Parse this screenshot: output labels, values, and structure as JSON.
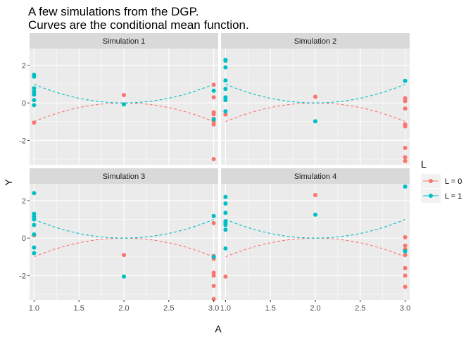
{
  "chart_data": {
    "type": "scatter",
    "title": "A few simulations from the DGP.",
    "subtitle": "Curves are the conditional mean function.",
    "xlabel": "A",
    "ylabel": "Y",
    "xlim": [
      0.95,
      3.05
    ],
    "ylim": [
      -3.3,
      2.9
    ],
    "x_ticks": [
      1.0,
      1.5,
      2.0,
      2.5,
      3.0
    ],
    "x_tick_labels": [
      "1.0",
      "1.5",
      "2.0",
      "2.5",
      "3.0"
    ],
    "y_ticks": [
      -2,
      0,
      2
    ],
    "y_tick_labels": [
      "-2",
      "0",
      "2"
    ],
    "grid": true,
    "legend": {
      "title": "L",
      "position": "right",
      "entries": [
        {
          "label": "L = 0",
          "color": "#F8766D"
        },
        {
          "label": "L = 1",
          "color": "#00BFC4"
        }
      ]
    },
    "colors": {
      "L0": "#F8766D",
      "L1": "#00BFC4"
    },
    "mean_curves": {
      "L0": "-(A-2)^2",
      "L1": "(A-2)^2"
    },
    "panels": [
      {
        "label": "Simulation 1",
        "series": [
          {
            "group": "L0",
            "points": [
              [
                1,
                -1.05
              ],
              [
                2,
                0.42
              ],
              [
                3,
                0.97
              ],
              [
                3,
                0.3
              ],
              [
                3,
                -0.5
              ],
              [
                3,
                -0.6
              ],
              [
                3,
                -0.85
              ],
              [
                3,
                -0.95
              ],
              [
                3,
                -1.0
              ],
              [
                3,
                -1.15
              ],
              [
                3,
                -3.0
              ]
            ]
          },
          {
            "group": "L1",
            "points": [
              [
                1,
                1.5
              ],
              [
                1,
                1.4
              ],
              [
                1,
                0.78
              ],
              [
                1,
                0.6
              ],
              [
                1,
                0.45
              ],
              [
                1,
                0.15
              ],
              [
                1,
                -0.12
              ],
              [
                2,
                -0.08
              ],
              [
                3,
                0.65
              ],
              [
                3,
                -0.88
              ]
            ]
          }
        ]
      },
      {
        "label": "Simulation 2",
        "series": [
          {
            "group": "L0",
            "points": [
              [
                1,
                -0.62
              ],
              [
                2,
                0.33
              ],
              [
                3,
                0.25
              ],
              [
                3,
                0.1
              ],
              [
                3,
                -0.3
              ],
              [
                3,
                -1.15
              ],
              [
                3,
                -1.25
              ],
              [
                3,
                -2.4
              ],
              [
                3,
                -2.9
              ],
              [
                3,
                -3.1
              ]
            ]
          },
          {
            "group": "L1",
            "points": [
              [
                1,
                2.3
              ],
              [
                1,
                2.25
              ],
              [
                1,
                1.9
              ],
              [
                1,
                1.2
              ],
              [
                1,
                0.75
              ],
              [
                1,
                0.3
              ],
              [
                1,
                0.15
              ],
              [
                1,
                -0.45
              ],
              [
                2,
                -0.98
              ],
              [
                3,
                1.18
              ]
            ]
          }
        ]
      },
      {
        "label": "Simulation 3",
        "series": [
          {
            "group": "L0",
            "points": [
              [
                1,
                0.15
              ],
              [
                2,
                -0.9
              ],
              [
                3,
                0.8
              ],
              [
                3,
                -0.95
              ],
              [
                3,
                -1.1
              ],
              [
                3,
                -1.85
              ],
              [
                3,
                -2.0
              ],
              [
                3,
                -2.55
              ],
              [
                3,
                -3.25
              ]
            ]
          },
          {
            "group": "L1",
            "points": [
              [
                1,
                2.4
              ],
              [
                1,
                1.3
              ],
              [
                1,
                1.15
              ],
              [
                1,
                1.0
              ],
              [
                1,
                0.7
              ],
              [
                1,
                0.2
              ],
              [
                1,
                -0.5
              ],
              [
                1,
                -0.8
              ],
              [
                2,
                -2.05
              ],
              [
                3,
                1.18
              ],
              [
                3,
                -1.0
              ]
            ]
          }
        ]
      },
      {
        "label": "Simulation 4",
        "series": [
          {
            "group": "L0",
            "points": [
              [
                1,
                -2.05
              ],
              [
                2,
                2.3
              ],
              [
                3,
                0.05
              ],
              [
                3,
                -0.4
              ],
              [
                3,
                -0.6
              ],
              [
                3,
                -0.9
              ],
              [
                3,
                -1.6
              ],
              [
                3,
                -2.0
              ],
              [
                3,
                -2.6
              ]
            ]
          },
          {
            "group": "L1",
            "points": [
              [
                1,
                2.2
              ],
              [
                1,
                1.85
              ],
              [
                1,
                1.35
              ],
              [
                1,
                0.9
              ],
              [
                1,
                0.8
              ],
              [
                1,
                0.7
              ],
              [
                1,
                0.45
              ],
              [
                1,
                -0.55
              ],
              [
                2,
                1.25
              ],
              [
                3,
                2.75
              ],
              [
                3,
                -0.7
              ]
            ]
          }
        ]
      }
    ]
  }
}
